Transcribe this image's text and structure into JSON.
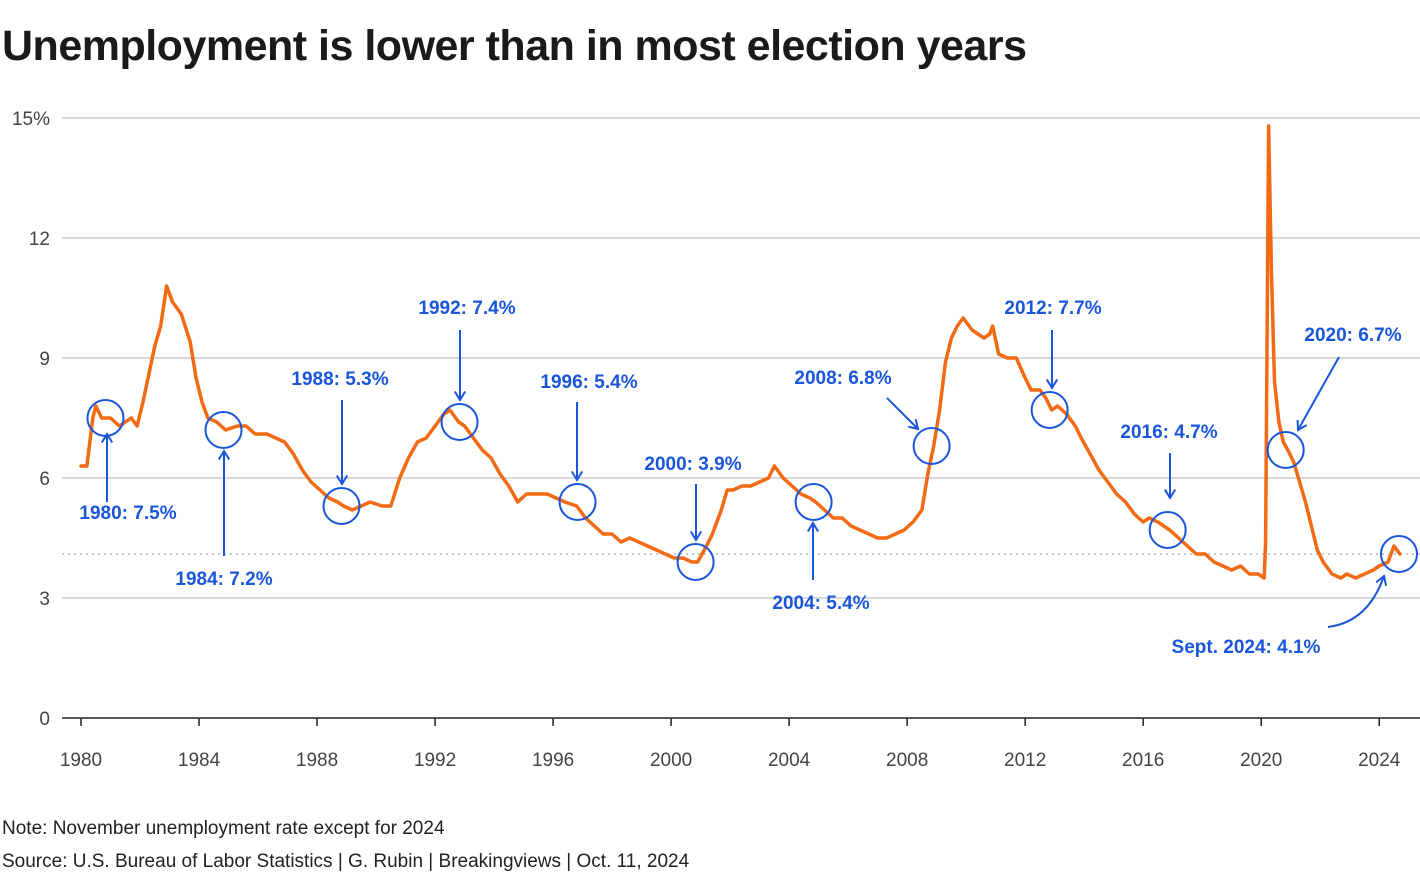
{
  "title": "Unemployment is lower than in most election years",
  "note": "Note: November unemployment rate except for 2024",
  "source": "Source: U.S. Bureau of Labor Statistics | G. Rubin | Breakingviews | Oct. 11, 2024",
  "colors": {
    "line": "#f26a13",
    "annotation": "#1a56db",
    "grid": "#cccccc",
    "reference": "#c8c8c8"
  },
  "chart_data": {
    "type": "line",
    "title": "Unemployment is lower than in most election years",
    "xlabel": "",
    "ylabel": "",
    "xlim": [
      1980,
      2024.9
    ],
    "ylim": [
      0,
      15
    ],
    "yticks": [
      0,
      3,
      6,
      9,
      12,
      15
    ],
    "ytick_labels": [
      "0",
      "3",
      "6",
      "9",
      "12",
      "15%"
    ],
    "xticks": [
      1980,
      1984,
      1988,
      1992,
      1996,
      2000,
      2004,
      2008,
      2012,
      2016,
      2020,
      2024
    ],
    "xtick_labels": [
      "1980",
      "1984",
      "1988",
      "1992",
      "1996",
      "2000",
      "2004",
      "2008",
      "2012",
      "2016",
      "2020",
      "2024"
    ],
    "grid": true,
    "reference_line": {
      "y": 4.1,
      "style": "dotted"
    },
    "series": [
      {
        "x": [
          1980.0,
          1980.2,
          1980.4,
          1980.5,
          1980.7,
          1981.0,
          1981.3,
          1981.5,
          1981.7,
          1981.9,
          1982.1,
          1982.3,
          1982.5,
          1982.7,
          1982.9,
          1983.1,
          1983.4,
          1983.7,
          1983.9,
          1984.1,
          1984.3,
          1984.6,
          1984.9,
          1985.3,
          1985.6,
          1985.9,
          1986.3,
          1986.6,
          1986.9,
          1987.2,
          1987.5,
          1987.8,
          1988.1,
          1988.4,
          1988.7,
          1988.9,
          1989.2,
          1989.5,
          1989.8,
          1990.2,
          1990.5,
          1990.8,
          1991.1,
          1991.4,
          1991.7,
          1992.0,
          1992.3,
          1992.5,
          1992.8,
          1993.0,
          1993.3,
          1993.6,
          1993.9,
          1994.2,
          1994.5,
          1994.8,
          1995.1,
          1995.4,
          1995.8,
          1996.1,
          1996.4,
          1996.8,
          1997.1,
          1997.4,
          1997.7,
          1998.0,
          1998.3,
          1998.6,
          1998.9,
          1999.2,
          1999.5,
          1999.8,
          2000.1,
          2000.4,
          2000.7,
          2000.9,
          2001.2,
          2001.4,
          2001.7,
          2001.9,
          2002.1,
          2002.4,
          2002.7,
          2003.0,
          2003.3,
          2003.5,
          2003.8,
          2004.1,
          2004.4,
          2004.7,
          2004.9,
          2005.2,
          2005.5,
          2005.8,
          2006.1,
          2006.4,
          2006.7,
          2007.0,
          2007.3,
          2007.6,
          2007.9,
          2008.2,
          2008.5,
          2008.7,
          2008.9,
          2009.1,
          2009.3,
          2009.5,
          2009.7,
          2009.9,
          2010.2,
          2010.4,
          2010.6,
          2010.8,
          2010.9,
          2011.1,
          2011.4,
          2011.7,
          2012.0,
          2012.2,
          2012.5,
          2012.7,
          2012.9,
          2013.1,
          2013.4,
          2013.7,
          2013.9,
          2014.2,
          2014.5,
          2014.8,
          2015.1,
          2015.4,
          2015.7,
          2016.0,
          2016.2,
          2016.5,
          2016.7,
          2016.9,
          2017.2,
          2017.5,
          2017.8,
          2018.1,
          2018.4,
          2018.7,
          2019.0,
          2019.3,
          2019.6,
          2019.9,
          2020.1,
          2020.15,
          2020.25,
          2020.35,
          2020.45,
          2020.6,
          2020.75,
          2020.9,
          2021.1,
          2021.3,
          2021.5,
          2021.7,
          2021.9,
          2022.1,
          2022.4,
          2022.7,
          2022.9,
          2023.2,
          2023.5,
          2023.8,
          2024.0,
          2024.3,
          2024.5,
          2024.7
        ],
        "y": [
          6.3,
          6.3,
          7.5,
          7.8,
          7.5,
          7.5,
          7.3,
          7.4,
          7.5,
          7.3,
          7.9,
          8.6,
          9.3,
          9.8,
          10.8,
          10.4,
          10.1,
          9.4,
          8.5,
          7.9,
          7.5,
          7.4,
          7.2,
          7.3,
          7.3,
          7.1,
          7.1,
          7.0,
          6.9,
          6.6,
          6.2,
          5.9,
          5.7,
          5.5,
          5.4,
          5.3,
          5.2,
          5.3,
          5.4,
          5.3,
          5.3,
          6.0,
          6.5,
          6.9,
          7.0,
          7.3,
          7.6,
          7.7,
          7.4,
          7.3,
          7.0,
          6.7,
          6.5,
          6.1,
          5.8,
          5.4,
          5.6,
          5.6,
          5.6,
          5.5,
          5.4,
          5.3,
          5.0,
          4.8,
          4.6,
          4.6,
          4.4,
          4.5,
          4.4,
          4.3,
          4.2,
          4.1,
          4.0,
          4.0,
          3.9,
          3.9,
          4.3,
          4.6,
          5.2,
          5.7,
          5.7,
          5.8,
          5.8,
          5.9,
          6.0,
          6.3,
          6.0,
          5.8,
          5.6,
          5.5,
          5.4,
          5.2,
          5.0,
          5.0,
          4.8,
          4.7,
          4.6,
          4.5,
          4.5,
          4.6,
          4.7,
          4.9,
          5.2,
          6.1,
          6.8,
          7.7,
          8.9,
          9.5,
          9.8,
          10.0,
          9.7,
          9.6,
          9.5,
          9.6,
          9.8,
          9.1,
          9.0,
          9.0,
          8.5,
          8.2,
          8.2,
          8.0,
          7.7,
          7.8,
          7.6,
          7.3,
          7.0,
          6.6,
          6.2,
          5.9,
          5.6,
          5.4,
          5.1,
          4.9,
          5.0,
          4.9,
          4.8,
          4.7,
          4.5,
          4.3,
          4.1,
          4.1,
          3.9,
          3.8,
          3.7,
          3.8,
          3.6,
          3.6,
          3.5,
          4.4,
          14.8,
          11.1,
          8.4,
          7.4,
          6.9,
          6.7,
          6.4,
          5.9,
          5.4,
          4.8,
          4.2,
          3.9,
          3.6,
          3.5,
          3.6,
          3.5,
          3.6,
          3.7,
          3.8,
          3.9,
          4.3,
          4.1
        ]
      }
    ],
    "highlighted_points": [
      {
        "x": 1980.83,
        "y": 7.5,
        "label": "1980: 7.5%"
      },
      {
        "x": 1984.83,
        "y": 7.2,
        "label": "1984: 7.2%"
      },
      {
        "x": 1988.83,
        "y": 5.3,
        "label": "1988: 5.3%"
      },
      {
        "x": 1992.83,
        "y": 7.4,
        "label": "1992: 7.4%"
      },
      {
        "x": 1996.83,
        "y": 5.4,
        "label": "1996: 5.4%"
      },
      {
        "x": 2000.83,
        "y": 3.9,
        "label": "2000: 3.9%"
      },
      {
        "x": 2004.83,
        "y": 5.4,
        "label": "2004: 5.4%"
      },
      {
        "x": 2008.83,
        "y": 6.8,
        "label": "2008: 6.8%"
      },
      {
        "x": 2012.83,
        "y": 7.7,
        "label": "2012: 7.7%"
      },
      {
        "x": 2016.83,
        "y": 4.7,
        "label": "2016: 4.7%"
      },
      {
        "x": 2020.83,
        "y": 6.7,
        "label": "2020: 6.7%"
      },
      {
        "x": 2024.67,
        "y": 4.1,
        "label": "Sept. 2024: 4.1%"
      }
    ]
  }
}
